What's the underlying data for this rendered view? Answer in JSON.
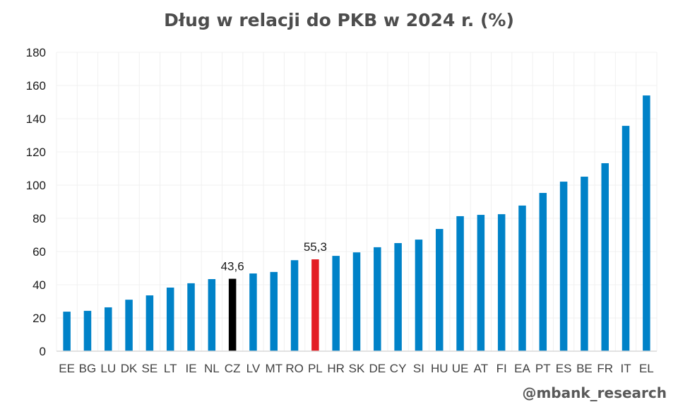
{
  "chart_data": {
    "type": "bar",
    "title": "Dług w relacji do PKB w 2024 r. (%)",
    "xlabel": "",
    "ylabel": "",
    "ylim": [
      0,
      180
    ],
    "yticks": [
      0,
      20,
      40,
      60,
      80,
      100,
      120,
      140,
      160,
      180
    ],
    "grid": true,
    "legend": "none",
    "categories": [
      "EE",
      "BG",
      "LU",
      "DK",
      "SE",
      "LT",
      "IE",
      "NL",
      "CZ",
      "LV",
      "MT",
      "RO",
      "PL",
      "HR",
      "SK",
      "DE",
      "CY",
      "SI",
      "HU",
      "UE",
      "AT",
      "FI",
      "EA",
      "PT",
      "ES",
      "BE",
      "FR",
      "IT",
      "EL"
    ],
    "values": [
      23.8,
      24.3,
      26.4,
      31.0,
      33.6,
      38.3,
      40.9,
      43.4,
      43.6,
      46.8,
      47.7,
      54.8,
      55.3,
      57.4,
      59.5,
      62.6,
      65.1,
      67.2,
      73.6,
      81.3,
      82.1,
      82.5,
      87.7,
      95.3,
      102.1,
      105.1,
      113.2,
      135.7,
      154.0
    ],
    "highlights": {
      "CZ": {
        "color": "#000000",
        "label": "43,6"
      },
      "PL": {
        "color": "#e31e24",
        "label": "55,3"
      }
    },
    "colors": {
      "bar": "#0082c8",
      "grid": "#f0f0f0",
      "axis": "#d9d9d9"
    }
  },
  "credit": "@mbank_research"
}
